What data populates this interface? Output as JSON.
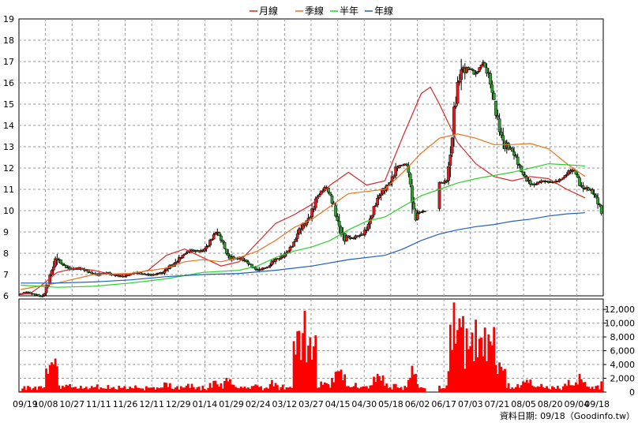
{
  "chart_data": {
    "type": "candlestick-with-volume",
    "legend": [
      {
        "name": "月線",
        "color": "#d62728"
      },
      {
        "name": "季線",
        "color": "#e8731a"
      },
      {
        "name": "半年",
        "color": "#2bd12b"
      },
      {
        "name": "年線",
        "color": "#1f5fbf"
      }
    ],
    "price_axis": {
      "min": 6,
      "max": 19,
      "ticks": [
        "6",
        "7",
        "8",
        "9",
        "10",
        "11",
        "12",
        "13",
        "14",
        "15",
        "16",
        "17",
        "18",
        "19"
      ]
    },
    "volume_axis": {
      "min": 0,
      "max": 13500,
      "ticks": [
        "0",
        "2,000",
        "4,000",
        "6,000",
        "8,000",
        "10,000",
        "12,000"
      ]
    },
    "date_ticks": [
      "09/19",
      "10/08",
      "10/27",
      "11/11",
      "11/26",
      "12/11",
      "12/29",
      "01/14",
      "01/29",
      "02/24",
      "03/12",
      "03/27",
      "04/15",
      "04/30",
      "05/18",
      "06/02",
      "06/17",
      "07/03",
      "07/21",
      "08/05",
      "08/20",
      "09/04",
      "09/18"
    ],
    "grid": true,
    "candle_colors": {
      "up": "#e41a1c",
      "down": "#2ca02c"
    },
    "volume_color": "#ff0000",
    "moving_averages": {
      "月線": [
        [
          0,
          6.1
        ],
        [
          5,
          6.1
        ],
        [
          10,
          6.4
        ],
        [
          20,
          7.1
        ],
        [
          30,
          7.3
        ],
        [
          40,
          7.2
        ],
        [
          50,
          7.0
        ],
        [
          60,
          7.0
        ],
        [
          70,
          7.2
        ],
        [
          80,
          7.9
        ],
        [
          90,
          8.2
        ],
        [
          100,
          7.8
        ],
        [
          110,
          7.4
        ],
        [
          120,
          7.6
        ],
        [
          130,
          8.5
        ],
        [
          140,
          9.4
        ],
        [
          150,
          9.8
        ],
        [
          160,
          10.3
        ],
        [
          170,
          11.2
        ],
        [
          180,
          11.8
        ],
        [
          190,
          11.2
        ],
        [
          200,
          11.4
        ],
        [
          210,
          13.5
        ],
        [
          220,
          15.5
        ],
        [
          225,
          15.8
        ],
        [
          230,
          15.0
        ],
        [
          240,
          13.2
        ],
        [
          250,
          12.2
        ],
        [
          260,
          11.6
        ],
        [
          270,
          11.4
        ],
        [
          280,
          11.6
        ],
        [
          290,
          11.5
        ],
        [
          300,
          11.0
        ],
        [
          310,
          10.6
        ]
      ],
      "季線": [
        [
          0,
          6.3
        ],
        [
          20,
          6.6
        ],
        [
          40,
          7.0
        ],
        [
          60,
          7.05
        ],
        [
          80,
          7.3
        ],
        [
          90,
          7.6
        ],
        [
          100,
          7.7
        ],
        [
          110,
          7.6
        ],
        [
          120,
          7.8
        ],
        [
          130,
          8.1
        ],
        [
          140,
          8.6
        ],
        [
          150,
          9.2
        ],
        [
          160,
          9.6
        ],
        [
          170,
          10.2
        ],
        [
          180,
          10.8
        ],
        [
          190,
          10.9
        ],
        [
          200,
          11.0
        ],
        [
          210,
          11.8
        ],
        [
          220,
          12.7
        ],
        [
          230,
          13.4
        ],
        [
          240,
          13.6
        ],
        [
          250,
          13.4
        ],
        [
          260,
          13.1
        ],
        [
          270,
          13.1
        ],
        [
          280,
          13.15
        ],
        [
          290,
          12.9
        ],
        [
          300,
          12.2
        ],
        [
          310,
          11.6
        ]
      ],
      "半年": [
        [
          0,
          6.5
        ],
        [
          20,
          6.4
        ],
        [
          40,
          6.45
        ],
        [
          60,
          6.6
        ],
        [
          80,
          6.8
        ],
        [
          100,
          7.1
        ],
        [
          120,
          7.2
        ],
        [
          130,
          7.4
        ],
        [
          140,
          7.8
        ],
        [
          150,
          8.1
        ],
        [
          160,
          8.3
        ],
        [
          170,
          8.6
        ],
        [
          180,
          9.1
        ],
        [
          190,
          9.5
        ],
        [
          200,
          9.7
        ],
        [
          210,
          10.2
        ],
        [
          220,
          10.7
        ],
        [
          230,
          11.0
        ],
        [
          240,
          11.3
        ],
        [
          250,
          11.5
        ],
        [
          260,
          11.65
        ],
        [
          270,
          11.8
        ],
        [
          280,
          12.0
        ],
        [
          290,
          12.2
        ],
        [
          300,
          12.15
        ],
        [
          310,
          12.1
        ]
      ],
      "年線": [
        [
          0,
          6.6
        ],
        [
          20,
          6.6
        ],
        [
          40,
          6.65
        ],
        [
          60,
          6.75
        ],
        [
          80,
          6.9
        ],
        [
          100,
          7.0
        ],
        [
          120,
          7.05
        ],
        [
          140,
          7.2
        ],
        [
          160,
          7.4
        ],
        [
          180,
          7.7
        ],
        [
          200,
          7.9
        ],
        [
          210,
          8.2
        ],
        [
          220,
          8.6
        ],
        [
          230,
          8.9
        ],
        [
          240,
          9.1
        ],
        [
          250,
          9.25
        ],
        [
          260,
          9.35
        ],
        [
          270,
          9.5
        ],
        [
          280,
          9.6
        ],
        [
          290,
          9.75
        ],
        [
          300,
          9.85
        ],
        [
          310,
          9.9
        ]
      ]
    }
  },
  "footer": {
    "source": "資料日期: 09/18（Goodinfo.tw）"
  }
}
